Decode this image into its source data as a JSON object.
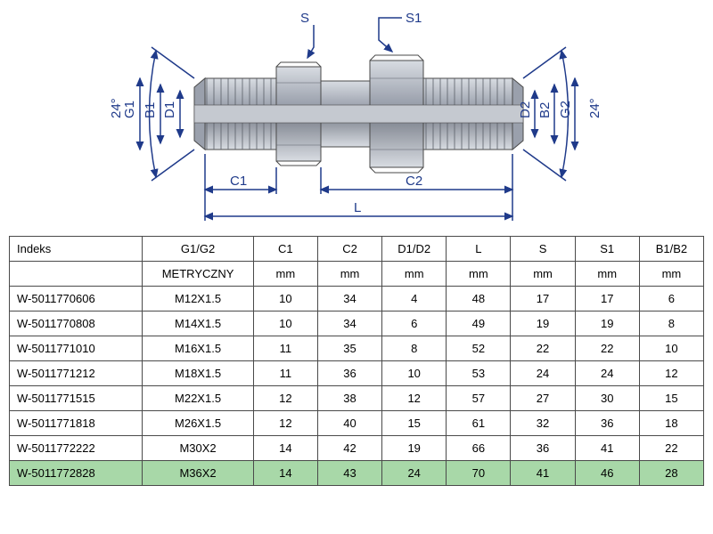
{
  "diagram": {
    "labels": {
      "S": "S",
      "S1": "S1",
      "G1": "G1",
      "B1": "B1",
      "D1": "D1",
      "D2": "D2",
      "B2": "B2",
      "G2": "G2",
      "C1": "C1",
      "C2": "C2",
      "L": "L",
      "angle_left": "24°",
      "angle_right": "24°"
    },
    "colors": {
      "dimension_line": "#1f3a8a",
      "label_text": "#1f3a8a",
      "part_fill_light": "#b8bcc4",
      "part_fill_dark": "#8a8f99",
      "part_fill_hex": "#9aa0ac",
      "part_stroke": "#4a4a4a",
      "background": "#ffffff"
    },
    "font_size": 15
  },
  "table": {
    "columns": [
      "Indeks",
      "G1/G2",
      "C1",
      "C2",
      "D1/D2",
      "L",
      "S",
      "S1",
      "B1/B2"
    ],
    "unit_row": [
      "",
      "METRYCZNY",
      "mm",
      "mm",
      "mm",
      "mm",
      "mm",
      "mm",
      "mm"
    ],
    "rows": [
      [
        "W-5011770606",
        "M12X1.5",
        "10",
        "34",
        "4",
        "48",
        "17",
        "17",
        "6"
      ],
      [
        "W-5011770808",
        "M14X1.5",
        "10",
        "34",
        "6",
        "49",
        "19",
        "19",
        "8"
      ],
      [
        "W-5011771010",
        "M16X1.5",
        "11",
        "35",
        "8",
        "52",
        "22",
        "22",
        "10"
      ],
      [
        "W-5011771212",
        "M18X1.5",
        "11",
        "36",
        "10",
        "53",
        "24",
        "24",
        "12"
      ],
      [
        "W-5011771515",
        "M22X1.5",
        "12",
        "38",
        "12",
        "57",
        "27",
        "30",
        "15"
      ],
      [
        "W-5011771818",
        "M26X1.5",
        "12",
        "40",
        "15",
        "61",
        "32",
        "36",
        "18"
      ],
      [
        "W-5011772222",
        "M30X2",
        "14",
        "42",
        "19",
        "66",
        "36",
        "41",
        "22"
      ],
      [
        "W-5011772828",
        "M36X2",
        "14",
        "43",
        "24",
        "70",
        "41",
        "46",
        "28"
      ]
    ],
    "highlighted_row_index": 7,
    "highlight_color": "#a8d8a8",
    "border_color": "#4a4a4a",
    "font_size": 13
  }
}
